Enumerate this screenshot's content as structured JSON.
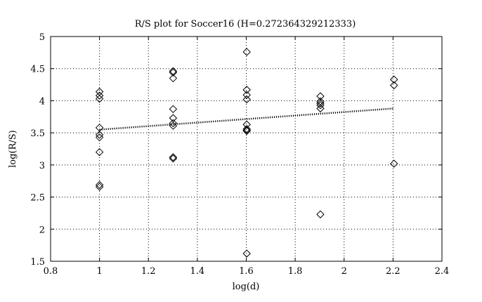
{
  "chart_data": {
    "type": "scatter",
    "title": "R/S plot for Soccer16 (H=0.272364329212333)",
    "xlabel": "log(d)",
    "ylabel": "log(R/S)",
    "xlim": [
      0.8,
      2.4
    ],
    "ylim": [
      1.5,
      5
    ],
    "xticks": [
      0.8,
      1,
      1.2,
      1.4,
      1.6,
      1.8,
      2,
      2.2,
      2.4
    ],
    "xtick_labels": [
      "0.8",
      "1",
      "1.2",
      "1.4",
      "1.6",
      "1.8",
      "2",
      "2.2",
      "2.4"
    ],
    "yticks": [
      1.5,
      2,
      2.5,
      3,
      3.5,
      4,
      4.5,
      5
    ],
    "ytick_labels": [
      "1.5",
      "2",
      "2.5",
      "3",
      "3.5",
      "4",
      "4.5",
      "5"
    ],
    "grid": true,
    "series": [
      {
        "marker": "diamond",
        "x": [
          1,
          1,
          1,
          1,
          1,
          1,
          1,
          1,
          1,
          1.301,
          1.301,
          1.301,
          1.301,
          1.301,
          1.301,
          1.301,
          1.301,
          1.301,
          1.602,
          1.602,
          1.602,
          1.602,
          1.602,
          1.602,
          1.602,
          1.602,
          1.602,
          1.903,
          1.903,
          1.903,
          1.903,
          1.903,
          1.903,
          2.204,
          2.204,
          2.204
        ],
        "y": [
          4.14,
          4.08,
          4.03,
          3.58,
          3.47,
          3.43,
          3.2,
          2.69,
          2.66,
          4.46,
          4.44,
          4.35,
          3.87,
          3.73,
          3.65,
          3.61,
          3.12,
          3.1,
          4.76,
          4.17,
          4.09,
          4.02,
          3.63,
          3.56,
          3.54,
          3.53,
          1.62,
          4.07,
          3.99,
          3.96,
          3.93,
          3.88,
          2.23,
          4.33,
          4.24,
          3.02
        ]
      },
      {
        "line_style": "dotted",
        "x": [
          1,
          2.204
        ],
        "y": [
          3.55,
          3.88
        ]
      }
    ]
  }
}
